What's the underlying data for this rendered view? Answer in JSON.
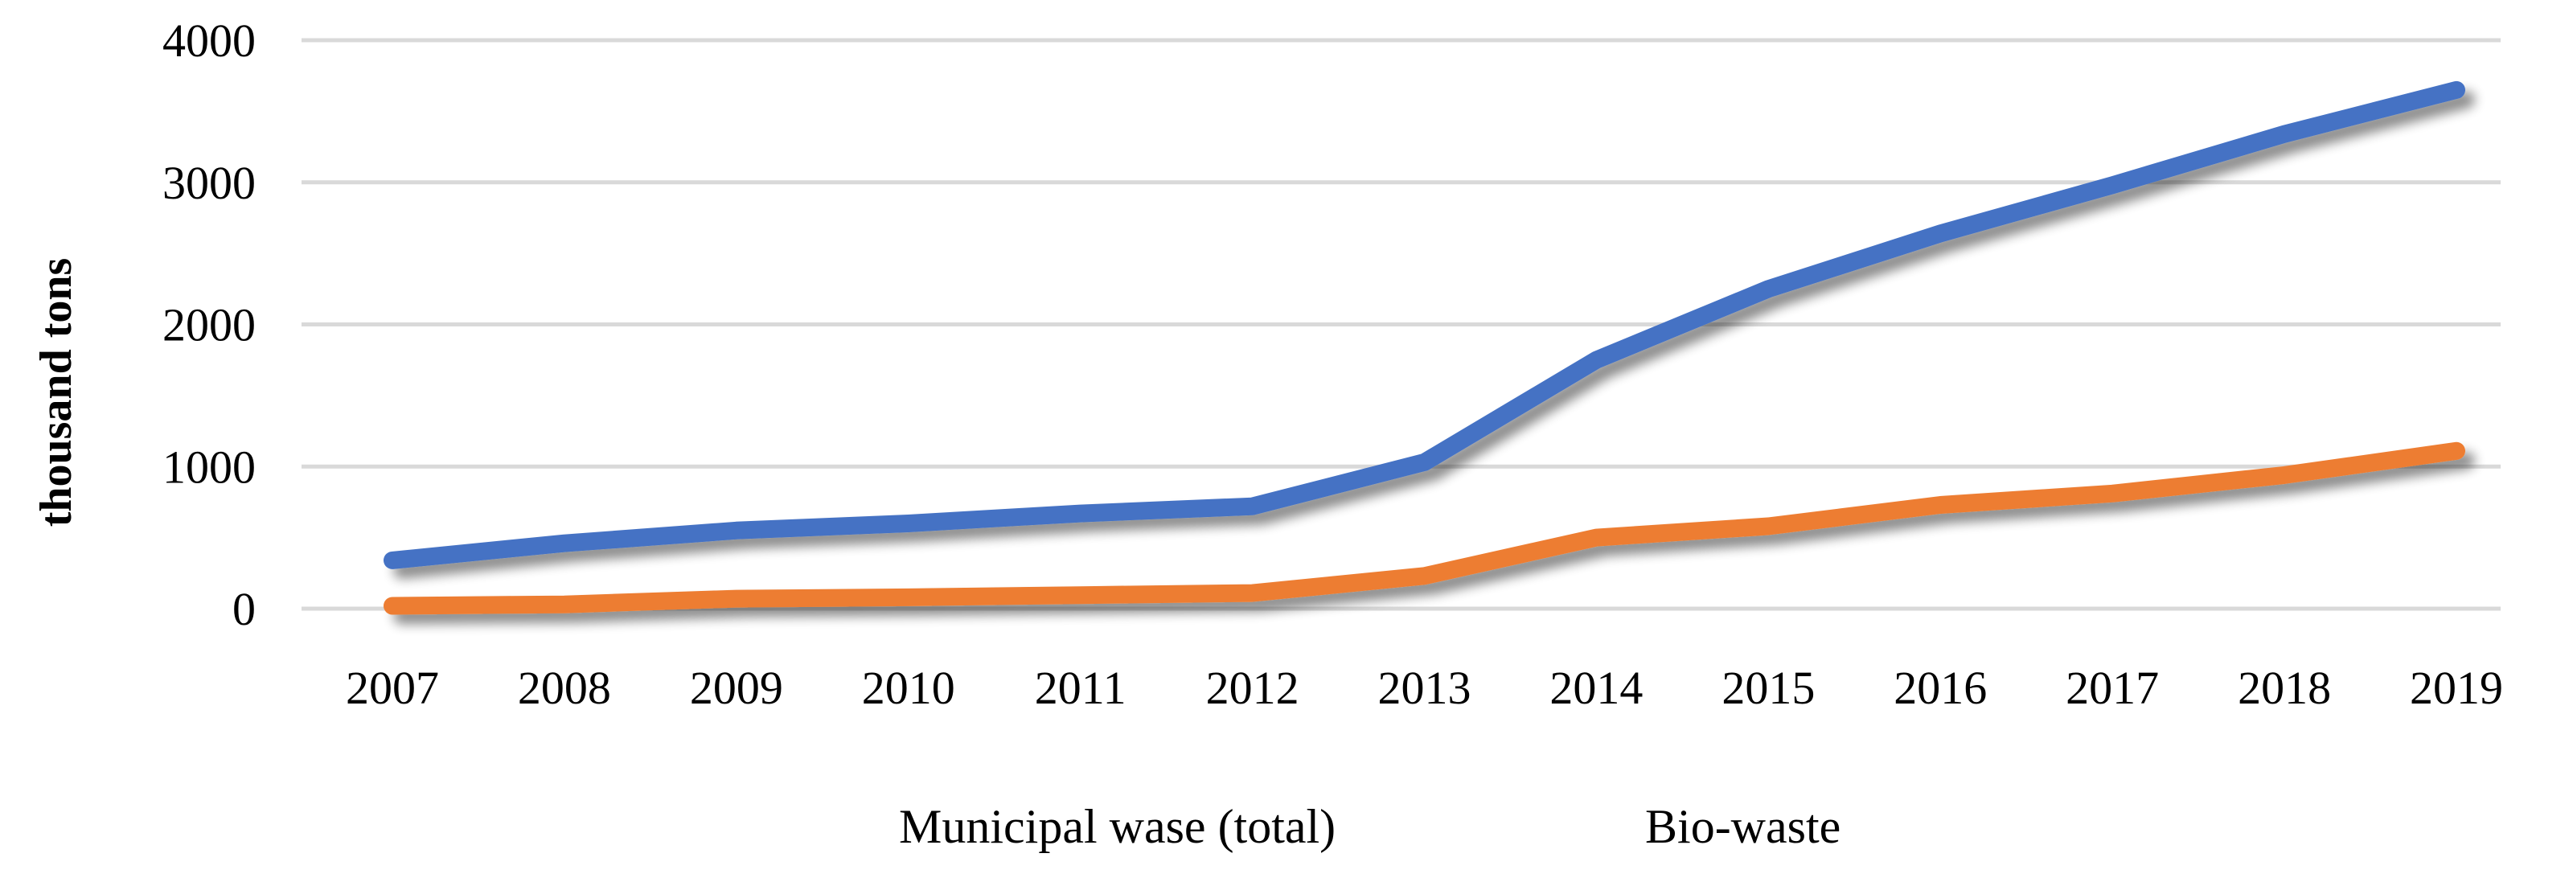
{
  "chart_data": {
    "type": "line",
    "title": "",
    "xlabel": "",
    "ylabel": "thousand tons",
    "categories": [
      "2007",
      "2008",
      "2009",
      "2010",
      "2011",
      "2012",
      "2013",
      "2014",
      "2015",
      "2016",
      "2017",
      "2018",
      "2019"
    ],
    "series": [
      {
        "name": "Municipal wase (total)",
        "color": "#4472C4",
        "values": [
          340,
          460,
          550,
          600,
          670,
          720,
          1030,
          1750,
          2250,
          2640,
          2980,
          3340,
          3650
        ]
      },
      {
        "name": "Bio-waste",
        "color": "#ED7D31",
        "values": [
          20,
          30,
          70,
          80,
          95,
          110,
          230,
          500,
          580,
          730,
          810,
          940,
          1110
        ]
      }
    ],
    "ylim": [
      0,
      4000
    ],
    "yticks": [
      "0",
      "1000",
      "2000",
      "3000",
      "4000"
    ],
    "grid": true,
    "gridline_color": "#D9D9D9",
    "legend_position": "bottom"
  }
}
